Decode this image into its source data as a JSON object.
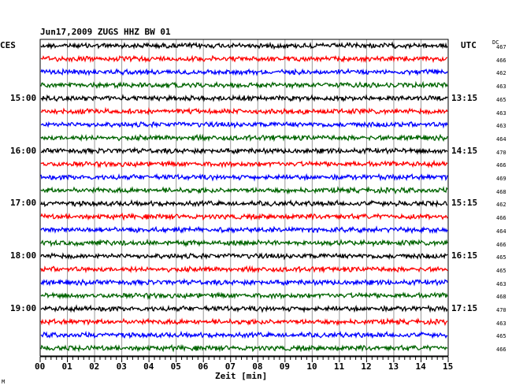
{
  "chart_data": {
    "type": "line",
    "title": "Jun17,2009   ZUGS HHZ BW 01",
    "left_header": "CES",
    "right_header": "UTC",
    "dc_header": "DC",
    "xlabel": "Zeit [min]",
    "xlim": [
      0,
      15
    ],
    "x_ticks": [
      "00",
      "01",
      "02",
      "03",
      "04",
      "05",
      "06",
      "07",
      "08",
      "09",
      "10",
      "11",
      "12",
      "13",
      "14",
      "15"
    ],
    "trace_colors": [
      "#000000",
      "#ff0000",
      "#0000ff",
      "#006400"
    ],
    "trace_count": 24,
    "hour_labels_local": [
      {
        "trace": 4,
        "label": "15:00"
      },
      {
        "trace": 8,
        "label": "16:00"
      },
      {
        "trace": 12,
        "label": "17:00"
      },
      {
        "trace": 16,
        "label": "18:00"
      },
      {
        "trace": 20,
        "label": "19:00"
      }
    ],
    "hour_labels_utc": [
      {
        "trace": 4,
        "label": "13:15"
      },
      {
        "trace": 8,
        "label": "14:15"
      },
      {
        "trace": 12,
        "label": "15:15"
      },
      {
        "trace": 16,
        "label": "16:15"
      },
      {
        "trace": 20,
        "label": "17:15"
      }
    ],
    "dc_values": [
      "467",
      "466",
      "462",
      "463",
      "465",
      "463",
      "463",
      "464",
      "470",
      "466",
      "469",
      "468",
      "462",
      "466",
      "464",
      "466",
      "465",
      "465",
      "463",
      "468",
      "470",
      "463",
      "465",
      "466"
    ],
    "grid": true
  },
  "footer_mark": "M"
}
